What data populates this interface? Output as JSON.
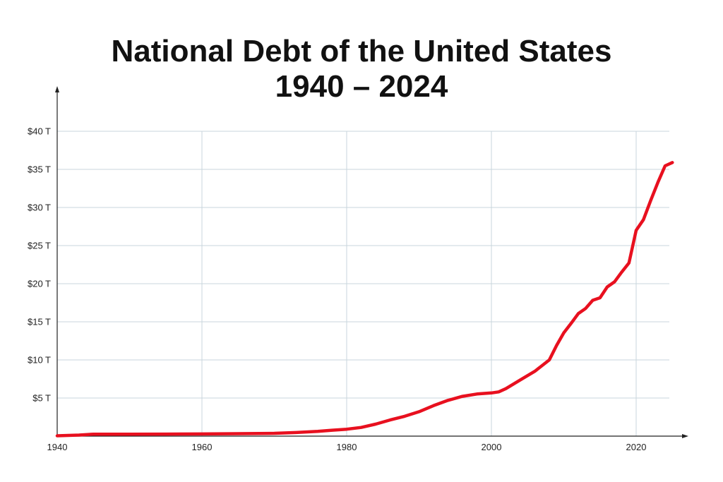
{
  "title": {
    "line1": "National Debt of the United States",
    "line2": "1940 – 2024"
  },
  "chart_data": {
    "type": "line",
    "title": "National Debt of the United States 1940 – 2024",
    "xlabel": "",
    "ylabel": "",
    "xlim": [
      1940,
      2025
    ],
    "ylim": [
      0,
      40
    ],
    "x_ticks": [
      1940,
      1960,
      1980,
      2000,
      2020
    ],
    "x_tick_labels": [
      "1940",
      "1960",
      "1980",
      "2000",
      "2020"
    ],
    "y_ticks": [
      5,
      10,
      15,
      20,
      25,
      30,
      35,
      40
    ],
    "y_tick_labels": [
      "$5 T",
      "$10 T",
      "$15 T",
      "$20 T",
      "$25 T",
      "$30 T",
      "$35 T",
      "$40 T"
    ],
    "grid": true,
    "line_color": "#e8101f",
    "grid_color": "#c9d6dc",
    "series": [
      {
        "x": [
          1940,
          1943,
          1945,
          1950,
          1955,
          1960,
          1965,
          1970,
          1973,
          1976,
          1978,
          1980,
          1982,
          1984,
          1986,
          1988,
          1990,
          1992,
          1994,
          1996,
          1998,
          2000,
          2001,
          2002,
          2004,
          2006,
          2008,
          2009,
          2010,
          2011,
          2012,
          2013,
          2014,
          2015,
          2016,
          2017,
          2018,
          2019,
          2020,
          2021,
          2022,
          2023,
          2024,
          2025
        ],
        "values": [
          0.05,
          0.14,
          0.26,
          0.26,
          0.27,
          0.29,
          0.32,
          0.37,
          0.47,
          0.62,
          0.78,
          0.91,
          1.14,
          1.57,
          2.12,
          2.6,
          3.2,
          4.0,
          4.69,
          5.22,
          5.53,
          5.67,
          5.81,
          6.23,
          7.38,
          8.51,
          10.0,
          11.9,
          13.56,
          14.79,
          16.07,
          16.74,
          17.82,
          18.15,
          19.57,
          20.24,
          21.52,
          22.72,
          27.0,
          28.4,
          30.9,
          33.3,
          35.46,
          35.9
        ]
      }
    ]
  }
}
